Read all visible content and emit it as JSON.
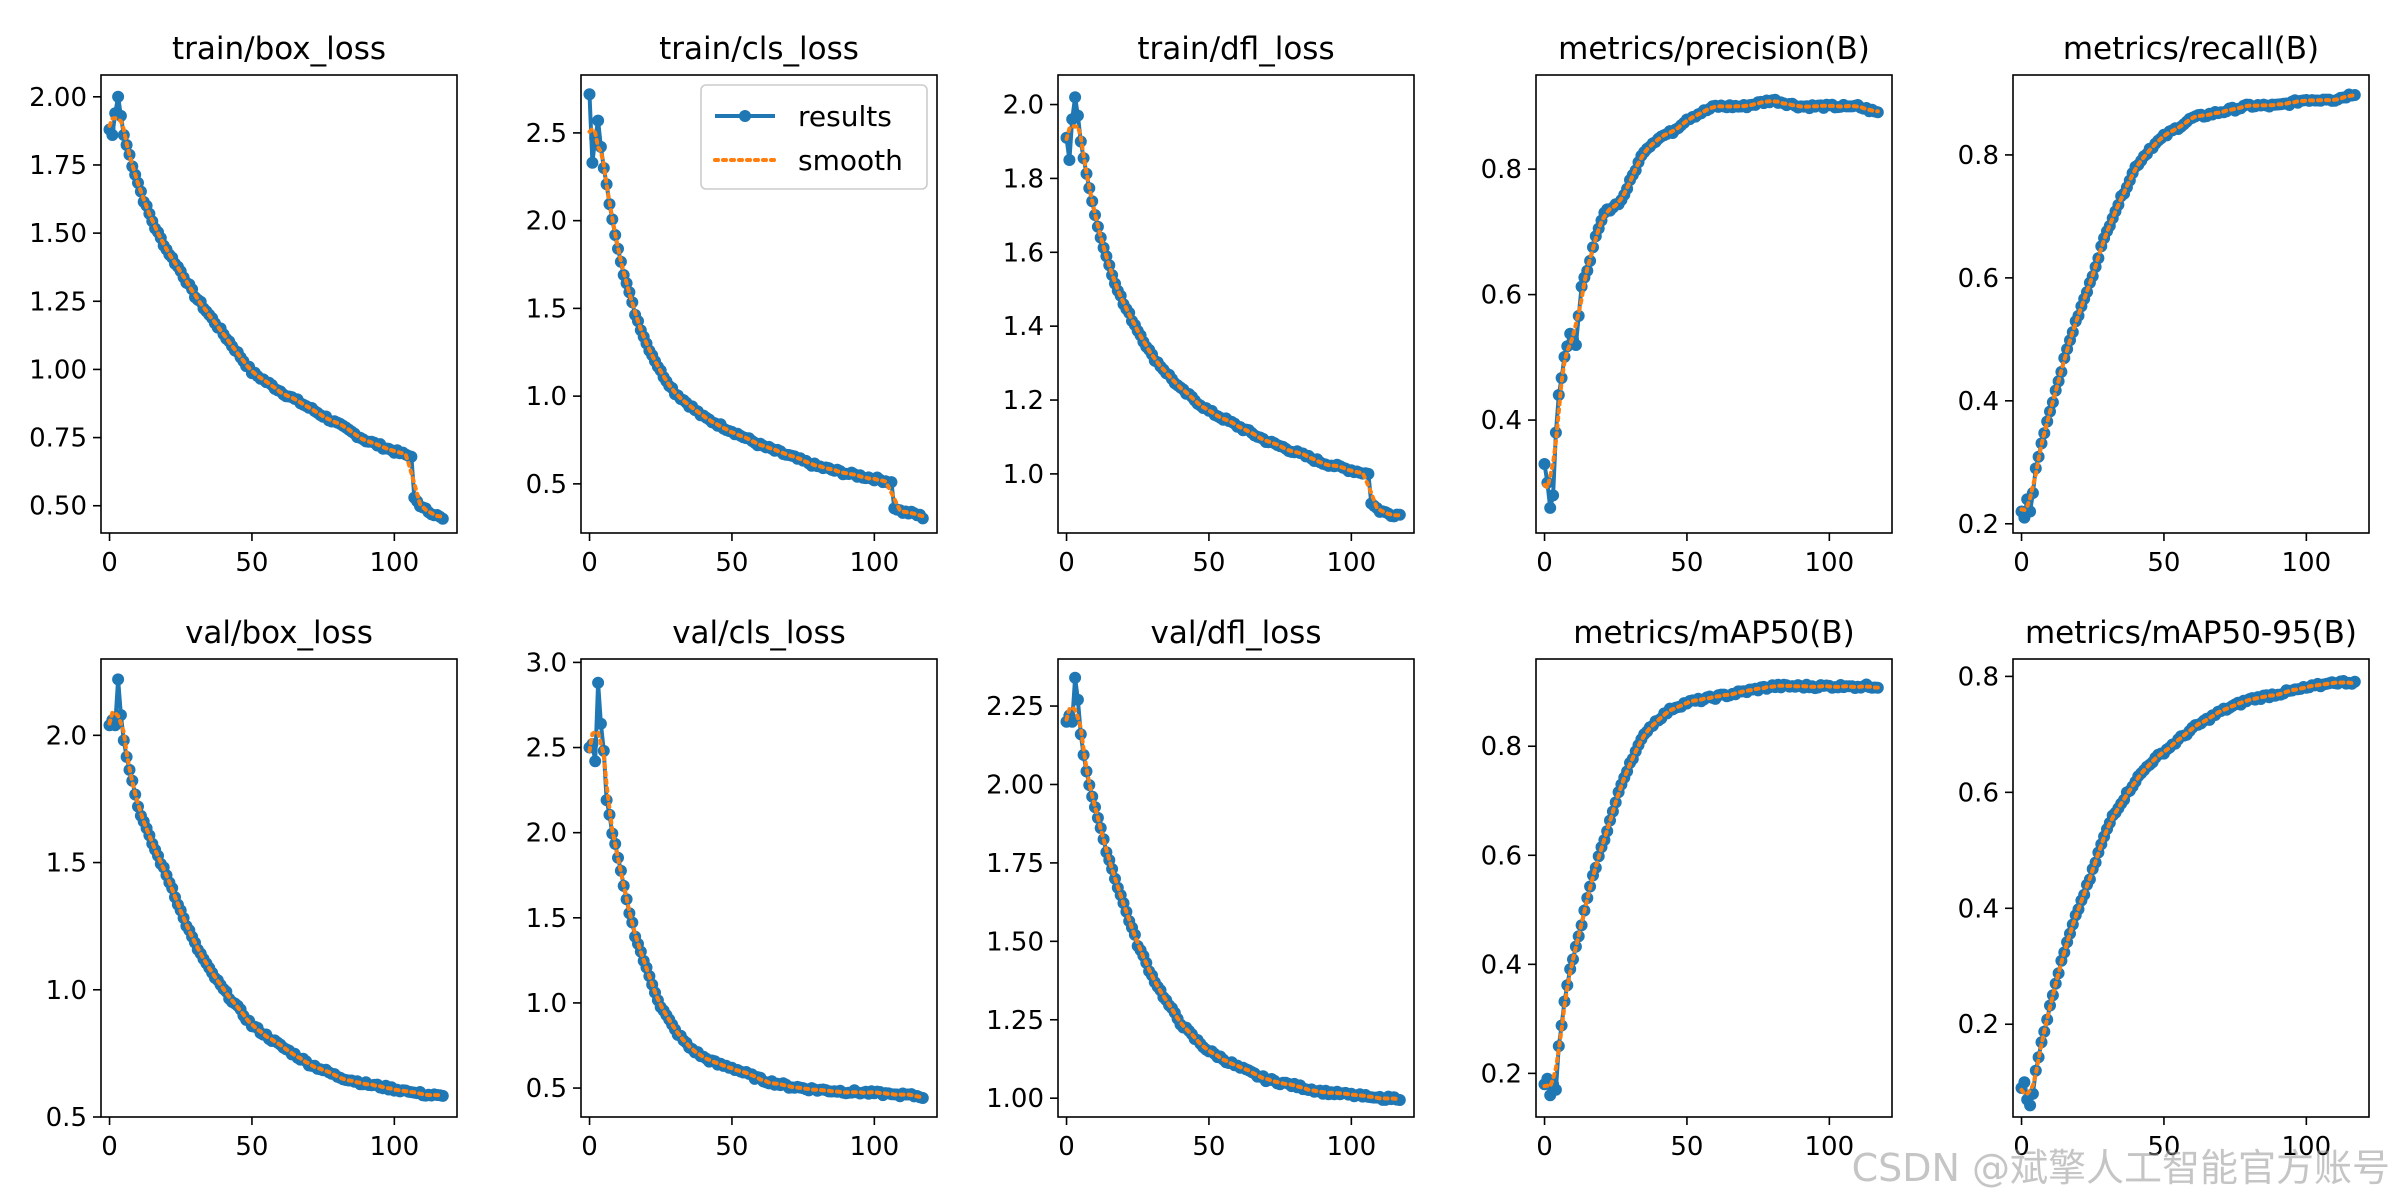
{
  "watermark": "CSDN @斌擎人工智能官方账号",
  "legend": {
    "results": "results",
    "smooth": "smooth"
  },
  "colors": {
    "results": "#1f77b4",
    "smooth": "#ff7f0e"
  },
  "chart_data": [
    {
      "type": "line",
      "title": "train/box_loss",
      "xlim": [
        -3,
        122
      ],
      "ylim": [
        0.4,
        2.08
      ],
      "xticks": [
        0,
        50,
        100
      ],
      "yticks": [
        0.5,
        0.75,
        1.0,
        1.25,
        1.5,
        1.75,
        2.0
      ],
      "ytick_labels": [
        "0.50",
        "0.75",
        "1.00",
        "1.25",
        "1.50",
        "1.75",
        "2.00"
      ],
      "epochs": 117,
      "points": [
        [
          0,
          1.88
        ],
        [
          1,
          1.86
        ],
        [
          2,
          1.94
        ],
        [
          3,
          2.0
        ],
        [
          4,
          1.93
        ],
        [
          5,
          1.86
        ],
        [
          8,
          1.75
        ],
        [
          12,
          1.62
        ],
        [
          16,
          1.52
        ],
        [
          20,
          1.44
        ],
        [
          25,
          1.36
        ],
        [
          30,
          1.27
        ],
        [
          40,
          1.13
        ],
        [
          50,
          0.99
        ],
        [
          60,
          0.92
        ],
        [
          70,
          0.86
        ],
        [
          80,
          0.8
        ],
        [
          90,
          0.74
        ],
        [
          100,
          0.7
        ],
        [
          106,
          0.68
        ],
        [
          107,
          0.53
        ],
        [
          110,
          0.49
        ],
        [
          114,
          0.47
        ],
        [
          117,
          0.45
        ]
      ],
      "series": [
        {
          "name": "results"
        },
        {
          "name": "smooth"
        }
      ]
    },
    {
      "type": "line",
      "title": "train/cls_loss",
      "xlim": [
        -3,
        122
      ],
      "ylim": [
        0.22,
        2.83
      ],
      "xticks": [
        0,
        50,
        100
      ],
      "yticks": [
        0.5,
        1.0,
        1.5,
        2.0,
        2.5
      ],
      "ytick_labels": [
        "0.5",
        "1.0",
        "1.5",
        "2.0",
        "2.5"
      ],
      "epochs": 117,
      "points": [
        [
          0,
          2.72
        ],
        [
          1,
          2.33
        ],
        [
          2,
          2.47
        ],
        [
          3,
          2.57
        ],
        [
          4,
          2.42
        ],
        [
          5,
          2.3
        ],
        [
          8,
          2.0
        ],
        [
          12,
          1.7
        ],
        [
          16,
          1.47
        ],
        [
          20,
          1.3
        ],
        [
          25,
          1.14
        ],
        [
          30,
          1.02
        ],
        [
          40,
          0.88
        ],
        [
          50,
          0.8
        ],
        [
          60,
          0.72
        ],
        [
          70,
          0.66
        ],
        [
          80,
          0.6
        ],
        [
          90,
          0.56
        ],
        [
          100,
          0.53
        ],
        [
          106,
          0.51
        ],
        [
          107,
          0.36
        ],
        [
          110,
          0.34
        ],
        [
          114,
          0.33
        ],
        [
          117,
          0.31
        ]
      ],
      "series": [
        {
          "name": "results"
        },
        {
          "name": "smooth"
        }
      ]
    },
    {
      "type": "line",
      "title": "train/dfl_loss",
      "xlim": [
        -3,
        122
      ],
      "ylim": [
        0.84,
        2.08
      ],
      "xticks": [
        0,
        50,
        100
      ],
      "yticks": [
        1.0,
        1.2,
        1.4,
        1.6,
        1.8,
        2.0
      ],
      "ytick_labels": [
        "1.0",
        "1.2",
        "1.4",
        "1.6",
        "1.8",
        "2.0"
      ],
      "epochs": 117,
      "points": [
        [
          0,
          1.91
        ],
        [
          1,
          1.85
        ],
        [
          2,
          1.96
        ],
        [
          3,
          2.02
        ],
        [
          4,
          1.97
        ],
        [
          5,
          1.9
        ],
        [
          8,
          1.77
        ],
        [
          12,
          1.64
        ],
        [
          16,
          1.54
        ],
        [
          20,
          1.46
        ],
        [
          25,
          1.39
        ],
        [
          30,
          1.32
        ],
        [
          40,
          1.23
        ],
        [
          50,
          1.17
        ],
        [
          60,
          1.13
        ],
        [
          70,
          1.09
        ],
        [
          80,
          1.06
        ],
        [
          90,
          1.03
        ],
        [
          100,
          1.01
        ],
        [
          106,
          1.0
        ],
        [
          107,
          0.92
        ],
        [
          110,
          0.9
        ],
        [
          114,
          0.89
        ],
        [
          117,
          0.89
        ]
      ],
      "series": [
        {
          "name": "results"
        },
        {
          "name": "smooth"
        }
      ]
    },
    {
      "type": "line",
      "title": "metrics/precision(B)",
      "xlim": [
        -3,
        122
      ],
      "ylim": [
        0.22,
        0.95
      ],
      "xticks": [
        0,
        50,
        100
      ],
      "yticks": [
        0.4,
        0.6,
        0.8
      ],
      "ytick_labels": [
        "0.4",
        "0.6",
        "0.8"
      ],
      "epochs": 117,
      "points": [
        [
          0,
          0.33
        ],
        [
          1,
          0.3
        ],
        [
          2,
          0.26
        ],
        [
          3,
          0.28
        ],
        [
          4,
          0.38
        ],
        [
          5,
          0.44
        ],
        [
          7,
          0.5
        ],
        [
          9,
          0.54
        ],
        [
          11,
          0.52
        ],
        [
          13,
          0.61
        ],
        [
          15,
          0.64
        ],
        [
          18,
          0.69
        ],
        [
          21,
          0.73
        ],
        [
          24,
          0.74
        ],
        [
          27,
          0.75
        ],
        [
          30,
          0.78
        ],
        [
          35,
          0.83
        ],
        [
          40,
          0.85
        ],
        [
          45,
          0.86
        ],
        [
          50,
          0.88
        ],
        [
          60,
          0.9
        ],
        [
          70,
          0.9
        ],
        [
          80,
          0.91
        ],
        [
          90,
          0.9
        ],
        [
          100,
          0.9
        ],
        [
          110,
          0.9
        ],
        [
          117,
          0.89
        ]
      ],
      "series": [
        {
          "name": "results"
        },
        {
          "name": "smooth"
        }
      ]
    },
    {
      "type": "line",
      "title": "metrics/recall(B)",
      "xlim": [
        -3,
        122
      ],
      "ylim": [
        0.185,
        0.93
      ],
      "xticks": [
        0,
        50,
        100
      ],
      "yticks": [
        0.2,
        0.4,
        0.6,
        0.8
      ],
      "ytick_labels": [
        "0.2",
        "0.4",
        "0.6",
        "0.8"
      ],
      "epochs": 117,
      "points": [
        [
          0,
          0.22
        ],
        [
          1,
          0.21
        ],
        [
          2,
          0.24
        ],
        [
          3,
          0.22
        ],
        [
          4,
          0.25
        ],
        [
          5,
          0.29
        ],
        [
          8,
          0.35
        ],
        [
          11,
          0.4
        ],
        [
          14,
          0.45
        ],
        [
          17,
          0.5
        ],
        [
          20,
          0.54
        ],
        [
          24,
          0.59
        ],
        [
          28,
          0.65
        ],
        [
          32,
          0.7
        ],
        [
          36,
          0.74
        ],
        [
          40,
          0.78
        ],
        [
          45,
          0.81
        ],
        [
          50,
          0.83
        ],
        [
          60,
          0.86
        ],
        [
          70,
          0.87
        ],
        [
          80,
          0.88
        ],
        [
          90,
          0.88
        ],
        [
          100,
          0.89
        ],
        [
          110,
          0.89
        ],
        [
          117,
          0.9
        ]
      ],
      "series": [
        {
          "name": "results"
        },
        {
          "name": "smooth"
        }
      ]
    },
    {
      "type": "line",
      "title": "val/box_loss",
      "xlim": [
        -3,
        122
      ],
      "ylim": [
        0.5,
        2.3
      ],
      "xticks": [
        0,
        50,
        100
      ],
      "yticks": [
        0.5,
        1.0,
        1.5,
        2.0
      ],
      "ytick_labels": [
        "0.5",
        "1.0",
        "1.5",
        "2.0"
      ],
      "epochs": 117,
      "points": [
        [
          0,
          2.04
        ],
        [
          1,
          2.06
        ],
        [
          2,
          2.04
        ],
        [
          3,
          2.22
        ],
        [
          4,
          2.08
        ],
        [
          5,
          1.98
        ],
        [
          6,
          1.92
        ],
        [
          8,
          1.82
        ],
        [
          10,
          1.72
        ],
        [
          14,
          1.6
        ],
        [
          18,
          1.5
        ],
        [
          22,
          1.4
        ],
        [
          26,
          1.28
        ],
        [
          30,
          1.18
        ],
        [
          35,
          1.08
        ],
        [
          40,
          1.0
        ],
        [
          45,
          0.93
        ],
        [
          50,
          0.86
        ],
        [
          60,
          0.78
        ],
        [
          70,
          0.71
        ],
        [
          80,
          0.66
        ],
        [
          90,
          0.63
        ],
        [
          100,
          0.61
        ],
        [
          110,
          0.59
        ],
        [
          117,
          0.58
        ]
      ],
      "series": [
        {
          "name": "results"
        },
        {
          "name": "smooth"
        }
      ]
    },
    {
      "type": "line",
      "title": "val/cls_loss",
      "xlim": [
        -3,
        122
      ],
      "ylim": [
        0.33,
        3.02
      ],
      "xticks": [
        0,
        50,
        100
      ],
      "yticks": [
        0.5,
        1.0,
        1.5,
        2.0,
        2.5,
        3.0
      ],
      "ytick_labels": [
        "0.5",
        "1.0",
        "1.5",
        "2.0",
        "2.5",
        "3.0"
      ],
      "epochs": 117,
      "points": [
        [
          0,
          2.5
        ],
        [
          1,
          2.52
        ],
        [
          2,
          2.42
        ],
        [
          3,
          2.88
        ],
        [
          4,
          2.64
        ],
        [
          5,
          2.48
        ],
        [
          6,
          2.2
        ],
        [
          8,
          2.0
        ],
        [
          10,
          1.85
        ],
        [
          13,
          1.6
        ],
        [
          16,
          1.4
        ],
        [
          20,
          1.2
        ],
        [
          25,
          0.98
        ],
        [
          30,
          0.84
        ],
        [
          35,
          0.74
        ],
        [
          40,
          0.68
        ],
        [
          45,
          0.64
        ],
        [
          50,
          0.62
        ],
        [
          60,
          0.55
        ],
        [
          70,
          0.51
        ],
        [
          80,
          0.49
        ],
        [
          90,
          0.48
        ],
        [
          100,
          0.47
        ],
        [
          110,
          0.46
        ],
        [
          117,
          0.45
        ]
      ],
      "series": [
        {
          "name": "results"
        },
        {
          "name": "smooth"
        }
      ]
    },
    {
      "type": "line",
      "title": "val/dfl_loss",
      "xlim": [
        -3,
        122
      ],
      "ylim": [
        0.94,
        2.4
      ],
      "xticks": [
        0,
        50,
        100
      ],
      "yticks": [
        1.0,
        1.25,
        1.5,
        1.75,
        2.0,
        2.25
      ],
      "ytick_labels": [
        "1.00",
        "1.25",
        "1.50",
        "1.75",
        "2.00",
        "2.25"
      ],
      "epochs": 117,
      "points": [
        [
          0,
          2.2
        ],
        [
          1,
          2.22
        ],
        [
          2,
          2.2
        ],
        [
          3,
          2.34
        ],
        [
          4,
          2.27
        ],
        [
          5,
          2.16
        ],
        [
          6,
          2.09
        ],
        [
          8,
          2.0
        ],
        [
          10,
          1.93
        ],
        [
          13,
          1.82
        ],
        [
          16,
          1.73
        ],
        [
          20,
          1.62
        ],
        [
          25,
          1.49
        ],
        [
          30,
          1.39
        ],
        [
          35,
          1.31
        ],
        [
          40,
          1.24
        ],
        [
          45,
          1.19
        ],
        [
          50,
          1.15
        ],
        [
          60,
          1.1
        ],
        [
          70,
          1.06
        ],
        [
          80,
          1.04
        ],
        [
          90,
          1.02
        ],
        [
          100,
          1.01
        ],
        [
          110,
          1.0
        ],
        [
          117,
          1.0
        ]
      ],
      "series": [
        {
          "name": "results"
        },
        {
          "name": "smooth"
        }
      ]
    },
    {
      "type": "line",
      "title": "metrics/mAP50(B)",
      "xlim": [
        -3,
        122
      ],
      "ylim": [
        0.12,
        0.96
      ],
      "xticks": [
        0,
        50,
        100
      ],
      "yticks": [
        0.2,
        0.4,
        0.6,
        0.8
      ],
      "ytick_labels": [
        "0.2",
        "0.4",
        "0.6",
        "0.8"
      ],
      "epochs": 117,
      "points": [
        [
          0,
          0.18
        ],
        [
          1,
          0.19
        ],
        [
          2,
          0.16
        ],
        [
          3,
          0.18
        ],
        [
          4,
          0.17
        ],
        [
          5,
          0.25
        ],
        [
          7,
          0.33
        ],
        [
          9,
          0.39
        ],
        [
          12,
          0.45
        ],
        [
          15,
          0.52
        ],
        [
          18,
          0.58
        ],
        [
          21,
          0.63
        ],
        [
          24,
          0.68
        ],
        [
          27,
          0.73
        ],
        [
          30,
          0.77
        ],
        [
          33,
          0.8
        ],
        [
          36,
          0.83
        ],
        [
          40,
          0.85
        ],
        [
          45,
          0.87
        ],
        [
          50,
          0.88
        ],
        [
          60,
          0.89
        ],
        [
          70,
          0.9
        ],
        [
          80,
          0.91
        ],
        [
          90,
          0.91
        ],
        [
          100,
          0.91
        ],
        [
          110,
          0.91
        ],
        [
          117,
          0.91
        ]
      ],
      "series": [
        {
          "name": "results"
        },
        {
          "name": "smooth"
        }
      ]
    },
    {
      "type": "line",
      "title": "metrics/mAP50-95(B)",
      "xlim": [
        -3,
        122
      ],
      "ylim": [
        0.04,
        0.83
      ],
      "xticks": [
        0,
        50,
        100
      ],
      "yticks": [
        0.2,
        0.4,
        0.6,
        0.8
      ],
      "ytick_labels": [
        "0.2",
        "0.4",
        "0.6",
        "0.8"
      ],
      "epochs": 117,
      "points": [
        [
          0,
          0.09
        ],
        [
          1,
          0.1
        ],
        [
          2,
          0.07
        ],
        [
          3,
          0.06
        ],
        [
          4,
          0.08
        ],
        [
          5,
          0.12
        ],
        [
          7,
          0.17
        ],
        [
          10,
          0.23
        ],
        [
          13,
          0.29
        ],
        [
          16,
          0.34
        ],
        [
          20,
          0.4
        ],
        [
          24,
          0.45
        ],
        [
          28,
          0.51
        ],
        [
          32,
          0.56
        ],
        [
          36,
          0.59
        ],
        [
          40,
          0.62
        ],
        [
          45,
          0.65
        ],
        [
          50,
          0.67
        ],
        [
          60,
          0.71
        ],
        [
          70,
          0.74
        ],
        [
          80,
          0.76
        ],
        [
          90,
          0.77
        ],
        [
          100,
          0.78
        ],
        [
          110,
          0.79
        ],
        [
          117,
          0.79
        ]
      ],
      "series": [
        {
          "name": "results"
        },
        {
          "name": "smooth"
        }
      ]
    }
  ]
}
